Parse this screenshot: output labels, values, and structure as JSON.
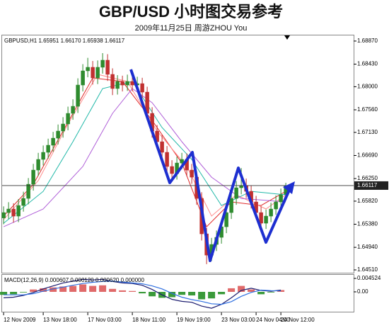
{
  "header": {
    "title": "GBP/USD 小时图交易参考",
    "subtitle": "2009年11月25日   周游ZHOU You"
  },
  "chart_data": [
    {
      "type": "candlestick",
      "label": "GBPUSD,H1  1.65951 1.66170 1.65938 1.66117",
      "xlim": [
        -0.3,
        70.7
      ],
      "ylim": [
        1.64456,
        1.68977
      ],
      "yticks": [
        {
          "value": 1.6887,
          "label": "1.68870"
        },
        {
          "value": 1.6843,
          "label": "1.68430"
        },
        {
          "value": 1.68,
          "label": "1.68000"
        },
        {
          "value": 1.6756,
          "label": "1.67560"
        },
        {
          "value": 1.6713,
          "label": "1.67130"
        },
        {
          "value": 1.6669,
          "label": "1.66690"
        },
        {
          "value": 1.6625,
          "label": "1.66250"
        },
        {
          "value": 1.6582,
          "label": "1.65820"
        },
        {
          "value": 1.6538,
          "label": "1.65380"
        },
        {
          "value": 1.6494,
          "label": "1.64940"
        },
        {
          "value": 1.6451,
          "label": "1.64510"
        }
      ],
      "up_color": "#2e8b2e",
      "down_color": "#c03030",
      "open": [
        1.655,
        1.65602,
        1.6567,
        1.65535,
        1.65737,
        1.65872,
        1.66142,
        1.66412,
        1.66615,
        1.6675,
        1.66885,
        1.6702,
        1.67155,
        1.6729,
        1.67492,
        1.67627,
        1.68032,
        1.68302,
        1.6837,
        1.68167,
        1.6837,
        1.68505,
        1.68235,
        1.67965,
        1.681,
        1.68032,
        1.681,
        1.68032,
        1.68059,
        1.67897,
        1.67492,
        1.67155,
        1.66952,
        1.6675,
        1.6648,
        1.66345,
        1.66547,
        1.66615,
        1.66412,
        1.66277,
        1.65872,
        1.65197,
        1.64792,
        1.64995,
        1.6513,
        1.65332,
        1.65602,
        1.65872,
        1.66075,
        1.66117,
        1.66007,
        1.65805,
        1.65602,
        1.654,
        1.65535,
        1.6567,
        1.65805,
        1.65951
      ],
      "high": [
        1.6572,
        1.658,
        1.6578,
        1.6586,
        1.66,
        1.6626,
        1.6653,
        1.6674,
        1.6688,
        1.6701,
        1.6714,
        1.6728,
        1.6742,
        1.6762,
        1.6776,
        1.6816,
        1.6843,
        1.6855,
        1.6849,
        1.685,
        1.6864,
        1.6862,
        1.6835,
        1.6822,
        1.6821,
        1.6823,
        1.6822,
        1.6819,
        1.6817,
        1.68,
        1.6761,
        1.6727,
        1.6708,
        1.6687,
        1.666,
        1.6667,
        1.6674,
        1.6673,
        1.6653,
        1.6639,
        1.6599,
        1.6531,
        1.6512,
        1.6526,
        1.6546,
        1.6573,
        1.66,
        1.662,
        1.6645,
        1.6625,
        1.6612,
        1.6592,
        1.6572,
        1.6566,
        1.6579,
        1.6593,
        1.6606,
        1.6617
      ],
      "low": [
        1.6538,
        1.6548,
        1.6541,
        1.6542,
        1.6562,
        1.6576,
        1.6602,
        1.663,
        1.665,
        1.6663,
        1.6676,
        1.669,
        1.6703,
        1.6717,
        1.6737,
        1.675,
        1.6791,
        1.6818,
        1.6804,
        1.6805,
        1.6825,
        1.6811,
        1.6784,
        1.6785,
        1.6791,
        1.6792,
        1.6791,
        1.6793,
        1.6778,
        1.6737,
        1.6703,
        1.6683,
        1.6662,
        1.6636,
        1.6622,
        1.6623,
        1.6643,
        1.6629,
        1.6615,
        1.6575,
        1.6507,
        1.6462,
        1.6468,
        1.6487,
        1.6501,
        1.6521,
        1.6548,
        1.6575,
        1.6595,
        1.6588,
        1.6568,
        1.6548,
        1.6528,
        1.6529,
        1.6542,
        1.6556,
        1.6569,
        1.65938
      ],
      "close": [
        1.65602,
        1.6567,
        1.65535,
        1.65737,
        1.65872,
        1.66142,
        1.66412,
        1.66615,
        1.6675,
        1.66885,
        1.6702,
        1.67155,
        1.6729,
        1.67492,
        1.67627,
        1.68032,
        1.68302,
        1.6837,
        1.68167,
        1.6837,
        1.68505,
        1.68235,
        1.67965,
        1.681,
        1.68032,
        1.681,
        1.68032,
        1.68059,
        1.67897,
        1.67492,
        1.67155,
        1.66952,
        1.6675,
        1.6648,
        1.66345,
        1.66547,
        1.66615,
        1.66412,
        1.66277,
        1.65872,
        1.65197,
        1.64792,
        1.64995,
        1.6513,
        1.65332,
        1.65602,
        1.65872,
        1.66075,
        1.66117,
        1.66007,
        1.65805,
        1.65602,
        1.654,
        1.65535,
        1.6567,
        1.65805,
        1.6594,
        1.66117
      ],
      "ma": [
        {
          "color": "#e02828",
          "x": [
            0,
            6,
            12,
            18,
            24,
            30,
            36,
            41,
            46,
            52,
            57
          ],
          "values": [
            1.65535,
            1.66142,
            1.67155,
            1.68167,
            1.681,
            1.67357,
            1.66547,
            1.65332,
            1.65805,
            1.65737,
            1.66007
          ]
        },
        {
          "color": "#ff8c8c",
          "x": [
            0,
            7,
            13,
            19,
            25,
            31,
            37,
            42,
            47,
            53,
            57
          ],
          "values": [
            1.65467,
            1.6621,
            1.6729,
            1.68235,
            1.681,
            1.67155,
            1.6648,
            1.65535,
            1.6594,
            1.6567,
            1.6594
          ]
        },
        {
          "color": "#20b8a8",
          "x": [
            0,
            8,
            14,
            20,
            26,
            32,
            38,
            44,
            50,
            57
          ],
          "values": [
            1.654,
            1.66007,
            1.66952,
            1.67965,
            1.681,
            1.67222,
            1.66615,
            1.65737,
            1.66007,
            1.6594
          ]
        },
        {
          "color": "#b060d8",
          "x": [
            0,
            8,
            16,
            22,
            26,
            30,
            36,
            42,
            48,
            57
          ],
          "values": [
            1.65332,
            1.6567,
            1.6648,
            1.67492,
            1.67965,
            1.67695,
            1.66952,
            1.66277,
            1.65872,
            1.65805
          ]
        }
      ]
    },
    {
      "type": "macd",
      "label": "MACD(12,26,9) 0.000607 0.000120 0.000620 0.000000",
      "xlim": [
        -0.3,
        70.7
      ],
      "ylim": [
        -0.00667,
        0.00571
      ],
      "yticks": [
        0.004524,
        {
          "value": 0,
          "label": "0.00"
        }
      ],
      "xticks": [
        {
          "value": 0,
          "label": "12 Nov 2009"
        },
        {
          "value": 8,
          "label": "13 Nov 18:00"
        },
        {
          "value": 17,
          "label": "17 Nov 03:00"
        },
        {
          "value": 26,
          "label": "18 Nov 11:00"
        },
        {
          "value": 35,
          "label": "19 Nov 19:00"
        },
        {
          "value": 44,
          "label": "23 Nov 03:00"
        },
        {
          "value": 51,
          "label": "24 Nov 04:00"
        },
        {
          "value": 56,
          "label": "24 Nov 12:00"
        }
      ],
      "pos_color": "#e06a6a",
      "neg_color": "#3a9a3a",
      "macd_color": "#1a1a6e",
      "signal_color": "#2f6fe0",
      "x": [
        0,
        2,
        4,
        6,
        8,
        10,
        12,
        14,
        16,
        18,
        20,
        22,
        24,
        26,
        28,
        30,
        32,
        34,
        36,
        38,
        40,
        42,
        44,
        46,
        48,
        50,
        52,
        54,
        56
      ],
      "histogram": [
        -0.001,
        -0.0008,
        -0.0002,
        0.0008,
        0.0012,
        0.0015,
        0.0018,
        0.002,
        0.0025,
        0.002,
        0.0022,
        0.001,
        0.0005,
        0.0003,
        -0.0005,
        -0.0015,
        -0.002,
        -0.0018,
        -0.001,
        -0.0012,
        -0.0025,
        -0.0022,
        -0.0008,
        0.0012,
        0.002,
        0.0008,
        -0.0008,
        -0.0002,
        0.0006
      ],
      "macd": [
        -0.002,
        -0.0018,
        -0.0012,
        -0.0002,
        0.001,
        0.002,
        0.003,
        0.0036,
        0.0042,
        0.004,
        0.0042,
        0.0035,
        0.003,
        0.0028,
        0.0022,
        0.0008,
        -0.001,
        -0.0025,
        -0.0032,
        -0.0035,
        -0.0048,
        -0.0055,
        -0.0042,
        -0.002,
        0.0005,
        0.0012,
        0.0005,
        0.0002,
        0.0006
      ],
      "signal": [
        -0.001,
        -0.001,
        -0.001,
        -0.0006,
        0.0002,
        0.001,
        0.0016,
        0.0022,
        0.0028,
        0.0032,
        0.0035,
        0.0036,
        0.0033,
        0.003,
        0.0027,
        0.002,
        0.001,
        -0.0005,
        -0.0018,
        -0.0026,
        -0.0032,
        -0.004,
        -0.0042,
        -0.0033,
        -0.0015,
        -0.0002,
        0.0006,
        0.0004,
        0.0003
      ]
    }
  ]
}
